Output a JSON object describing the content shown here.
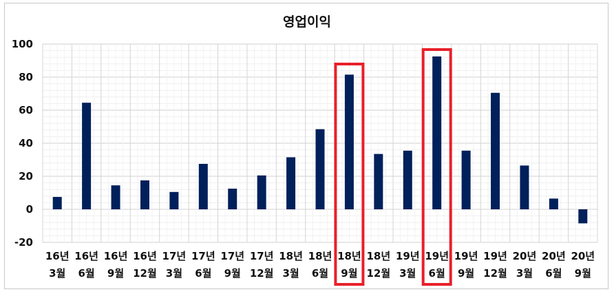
{
  "chart_data": {
    "type": "bar",
    "title": "영업이익",
    "categories": [
      [
        "16년",
        "3월"
      ],
      [
        "16년",
        "6월"
      ],
      [
        "16년",
        "9월"
      ],
      [
        "16년",
        "12월"
      ],
      [
        "17년",
        "3월"
      ],
      [
        "17년",
        "6월"
      ],
      [
        "17년",
        "9월"
      ],
      [
        "17년",
        "12월"
      ],
      [
        "18년",
        "3월"
      ],
      [
        "18년",
        "6월"
      ],
      [
        "18년",
        "9월"
      ],
      [
        "18년",
        "12월"
      ],
      [
        "19년",
        "3월"
      ],
      [
        "19년",
        "6월"
      ],
      [
        "19년",
        "9월"
      ],
      [
        "19년",
        "12월"
      ],
      [
        "20년",
        "3월"
      ],
      [
        "20년",
        "6월"
      ],
      [
        "20년",
        "9월"
      ]
    ],
    "values": [
      7.5,
      64.5,
      14.5,
      17.5,
      10.5,
      27.5,
      12.5,
      20.5,
      31.5,
      48.5,
      81.5,
      33.5,
      35.5,
      92.5,
      35.5,
      70.5,
      26.5,
      6.5,
      -8.5
    ],
    "ylim": [
      -20,
      100
    ],
    "yticks": [
      100,
      80,
      60,
      40,
      20,
      0,
      -20
    ],
    "grid": true,
    "highlighted_categories": [
      10,
      13
    ],
    "colors": {
      "bar": "#00205b",
      "highlight": "#e8202a",
      "grid": "#d9d9d9"
    }
  }
}
